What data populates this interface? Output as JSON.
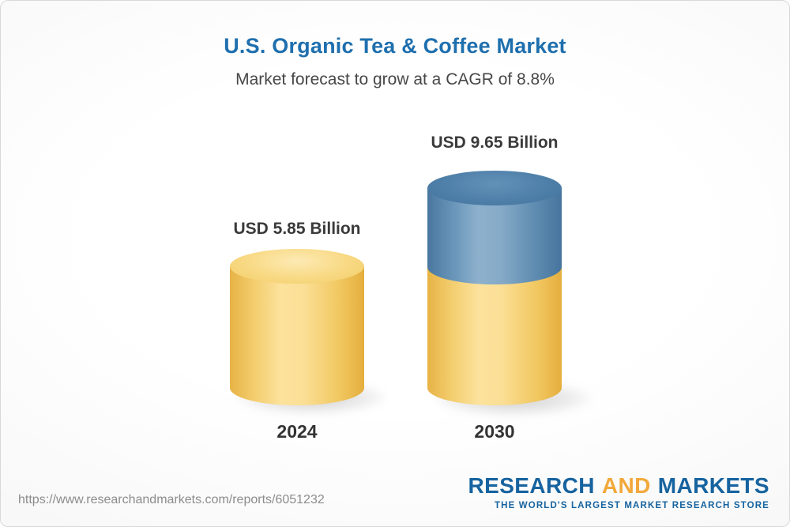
{
  "chart_data": {
    "type": "bar",
    "title": "U.S. Organic Tea & Coffee Market",
    "subtitle": "Market forecast to grow at a CAGR of 8.8%",
    "cagr": "8.8%",
    "unit": "USD Billion",
    "categories": [
      "2024",
      "2030"
    ],
    "values": [
      5.85,
      9.65
    ],
    "series": [
      {
        "name": "2024",
        "value": 5.85,
        "label": "USD 5.85 Billion",
        "colors": [
          "#f6cd6b"
        ]
      },
      {
        "name": "2030",
        "value": 9.65,
        "label": "USD 9.65 Billion",
        "colors": [
          "#f6cd6b",
          "#5d8cb4"
        ]
      }
    ],
    "legend": false,
    "grid": false,
    "bar_style": "3d-cylinder"
  },
  "footer": {
    "url": "https://www.researchandmarkets.com/reports/6051232",
    "logo": {
      "part1": "RESEARCH",
      "part2": "AND",
      "part3": "MARKETS",
      "tagline": "THE WORLD'S LARGEST MARKET RESEARCH STORE"
    }
  },
  "colors": {
    "title_blue": "#1e6fae",
    "text_dark": "#3a3a3a",
    "bar_yellow": "#f3cd6e",
    "bar_blue": "#5d8cb4",
    "logo_blue": "#16639f",
    "logo_gold": "#f2a93b",
    "url_gray": "#8c8c8c"
  }
}
